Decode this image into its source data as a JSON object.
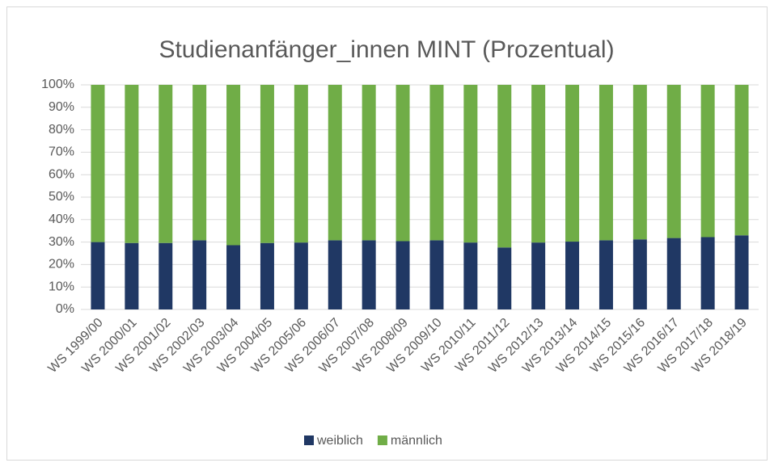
{
  "chart_data": {
    "type": "stacked_bar",
    "title": "Studienanfänger_innen MINT (Prozentual)",
    "categories": [
      "WS 1999/00",
      "WS 2000/01",
      "WS 2001/02",
      "WS 2002/03",
      "WS 2003/04",
      "WS 2004/05",
      "WS 2005/06",
      "WS 2006/07",
      "WS 2007/08",
      "WS 2008/09",
      "WS 2009/10",
      "WS 2010/11",
      "WS 2011/12",
      "WS 2012/13",
      "WS 2013/14",
      "WS 2014/15",
      "WS 2015/16",
      "WS 2016/17",
      "WS 2017/18",
      "WS 2018/19"
    ],
    "series": [
      {
        "name": "weiblich",
        "color": "#203864",
        "values": [
          30,
          29.6,
          29.6,
          30.8,
          28.6,
          29.6,
          29.8,
          30.8,
          30.8,
          30.4,
          30.8,
          29.8,
          27.6,
          29.8,
          30.2,
          30.8,
          31.2,
          31.8,
          32.2,
          33
        ]
      },
      {
        "name": "männlich",
        "color": "#70ad47",
        "values": [
          70,
          70.4,
          70.4,
          69.2,
          71.4,
          70.4,
          70.2,
          69.2,
          69.2,
          69.6,
          69.2,
          70.2,
          72.4,
          70.2,
          69.8,
          69.2,
          68.8,
          68.2,
          67.8,
          67
        ]
      }
    ],
    "ylim": [
      0,
      100
    ],
    "yticks": [
      {
        "value": 0,
        "label": "0%"
      },
      {
        "value": 10,
        "label": "10%"
      },
      {
        "value": 20,
        "label": "20%"
      },
      {
        "value": 30,
        "label": "30%"
      },
      {
        "value": 40,
        "label": "40%"
      },
      {
        "value": 50,
        "label": "50%"
      },
      {
        "value": 60,
        "label": "60%"
      },
      {
        "value": 70,
        "label": "70%"
      },
      {
        "value": 80,
        "label": "80%"
      },
      {
        "value": 90,
        "label": "90%"
      },
      {
        "value": 100,
        "label": "100%"
      }
    ],
    "grid": true,
    "legend": "bottom"
  }
}
